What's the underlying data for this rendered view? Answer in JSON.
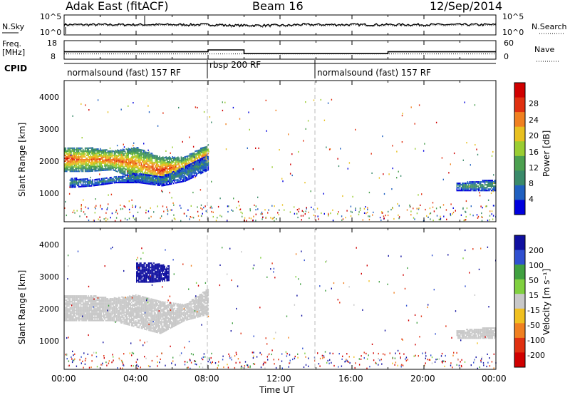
{
  "header": {
    "station": "Adak East (fitACF)",
    "beam": "Beam 16",
    "date": "12/Sep/2014"
  },
  "top_panel": {
    "left_label": "N.Sky",
    "left_ticks": [
      "10^5",
      "10^0"
    ],
    "right_label": "N.Search",
    "right_ticks": [
      "10^5",
      "10^0"
    ]
  },
  "freq_panel": {
    "left_label_line1": "Freq.",
    "left_label_line2": "[MHz]",
    "left_ticks": [
      "18",
      "8"
    ],
    "right_label": "Nave",
    "right_ticks": [
      "60",
      "0"
    ]
  },
  "cpid_panel": {
    "label": "CPID",
    "segments": [
      {
        "label": "normalsound (fast) 157 RF",
        "start": 0,
        "end": 8
      },
      {
        "label": "rbsp 200 RF",
        "start": 8,
        "end": 14
      },
      {
        "label": "normalsound (fast) 157 RF",
        "start": 14,
        "end": 24
      }
    ]
  },
  "x_axis": {
    "label": "Time UT",
    "ticks": [
      "00:00",
      "04:00",
      "08:00",
      "12:00",
      "16:00",
      "20:00",
      "00:00"
    ],
    "range_hours": [
      0,
      24
    ]
  },
  "power_panel": {
    "ylabel": "Slant Range [km]",
    "yticks": [
      "1000",
      "2000",
      "3000",
      "4000"
    ],
    "colorbar_label": "Power [dB]",
    "colorbar_ticks": [
      "28",
      "24",
      "20",
      "16",
      "12",
      "8",
      "4"
    ],
    "colors": [
      "#0000dd",
      "#2060c0",
      "#3a8a6a",
      "#4ca050",
      "#9acd32",
      "#e8c020",
      "#f08020",
      "#e03010",
      "#d00000"
    ]
  },
  "velocity_panel": {
    "ylabel": "Slant Range [km]",
    "yticks": [
      "1000",
      "2000",
      "3000",
      "4000"
    ],
    "colorbar_label": "Velocity [m s⁻¹]",
    "colorbar_ticks": [
      "200",
      "100",
      "50",
      "15",
      "-15",
      "-50",
      "-100",
      "-200"
    ],
    "colors": [
      "#1010a0",
      "#3050d0",
      "#40a040",
      "#80d040",
      "#c8c8c8",
      "#f0c020",
      "#f08020",
      "#e03010",
      "#d00000"
    ]
  },
  "chart_data": [
    {
      "type": "line",
      "title": "N.Sky / N.Search",
      "x": [
        0,
        24
      ],
      "series": [
        {
          "name": "N.Sky",
          "values": [
            10000,
            10000
          ]
        },
        {
          "name": "N.Search",
          "values": [
            10000,
            10000
          ]
        }
      ]
    },
    {
      "type": "line",
      "title": "Freq. / Nave",
      "x": [
        0,
        8,
        8,
        10,
        10,
        18,
        18,
        24
      ],
      "series": [
        {
          "name": "Freq. [MHz]",
          "values": [
            12,
            12,
            13,
            13,
            11,
            11,
            12,
            12
          ]
        },
        {
          "name": "Nave",
          "values": [
            12,
            12,
            12,
            12,
            12,
            12,
            12,
            12
          ]
        }
      ]
    },
    {
      "type": "heatmap",
      "title": "Power [dB]",
      "xlabel": "Time UT",
      "ylabel": "Slant Range [km]",
      "xlim": [
        0,
        24
      ],
      "ylim": [
        200,
        4600
      ],
      "zlim": [
        0,
        30
      ],
      "bands": [
        {
          "t_start": 0,
          "t_end": 8,
          "range_low": [
            1750,
            1750,
            1800,
            1500,
            1350,
            1700,
            1900
          ],
          "range_high": [
            2500,
            2500,
            2400,
            2500,
            2200,
            2200,
            2600
          ],
          "peak_power": [
            26,
            22,
            24,
            22,
            26,
            20,
            24
          ]
        },
        {
          "t_start": 0.3,
          "t_end": 8,
          "range_low": [
            1250,
            1300,
            1400,
            1400,
            1300,
            1450,
            1800
          ],
          "range_high": [
            1550,
            1500,
            1600,
            1700,
            1600,
            1900,
            2300
          ],
          "peak_power": [
            8,
            8,
            8,
            8,
            8,
            8,
            8
          ]
        },
        {
          "t_start": 21.8,
          "t_end": 24,
          "range_low": [
            1150,
            1150,
            1150
          ],
          "range_high": [
            1400,
            1450,
            1500
          ],
          "peak_power": [
            8,
            10,
            10
          ]
        }
      ]
    },
    {
      "type": "heatmap",
      "title": "Velocity [m s⁻¹]",
      "xlabel": "Time UT",
      "ylabel": "Slant Range [km]",
      "xlim": [
        0,
        24
      ],
      "ylim": [
        200,
        4600
      ],
      "zlim": [
        -250,
        250
      ],
      "bands": [
        {
          "t_start": 0,
          "t_end": 8,
          "range_low": [
            1700,
            1700,
            1700,
            1500,
            1300,
            1700,
            1900
          ],
          "range_high": [
            2500,
            2500,
            2400,
            2500,
            2300,
            2200,
            2700
          ],
          "velocity": [
            0,
            0,
            0,
            0,
            0,
            0,
            0
          ]
        },
        {
          "t_start": 4.0,
          "t_end": 5.8,
          "range_low": [
            2900,
            2900,
            2950
          ],
          "range_high": [
            3500,
            3500,
            3400
          ],
          "velocity": [
            220,
            220,
            200
          ]
        },
        {
          "t_start": 21.8,
          "t_end": 24,
          "range_low": [
            1150,
            1150,
            1150
          ],
          "range_high": [
            1400,
            1450,
            1500
          ],
          "velocity": [
            0,
            0,
            0
          ]
        }
      ]
    }
  ]
}
